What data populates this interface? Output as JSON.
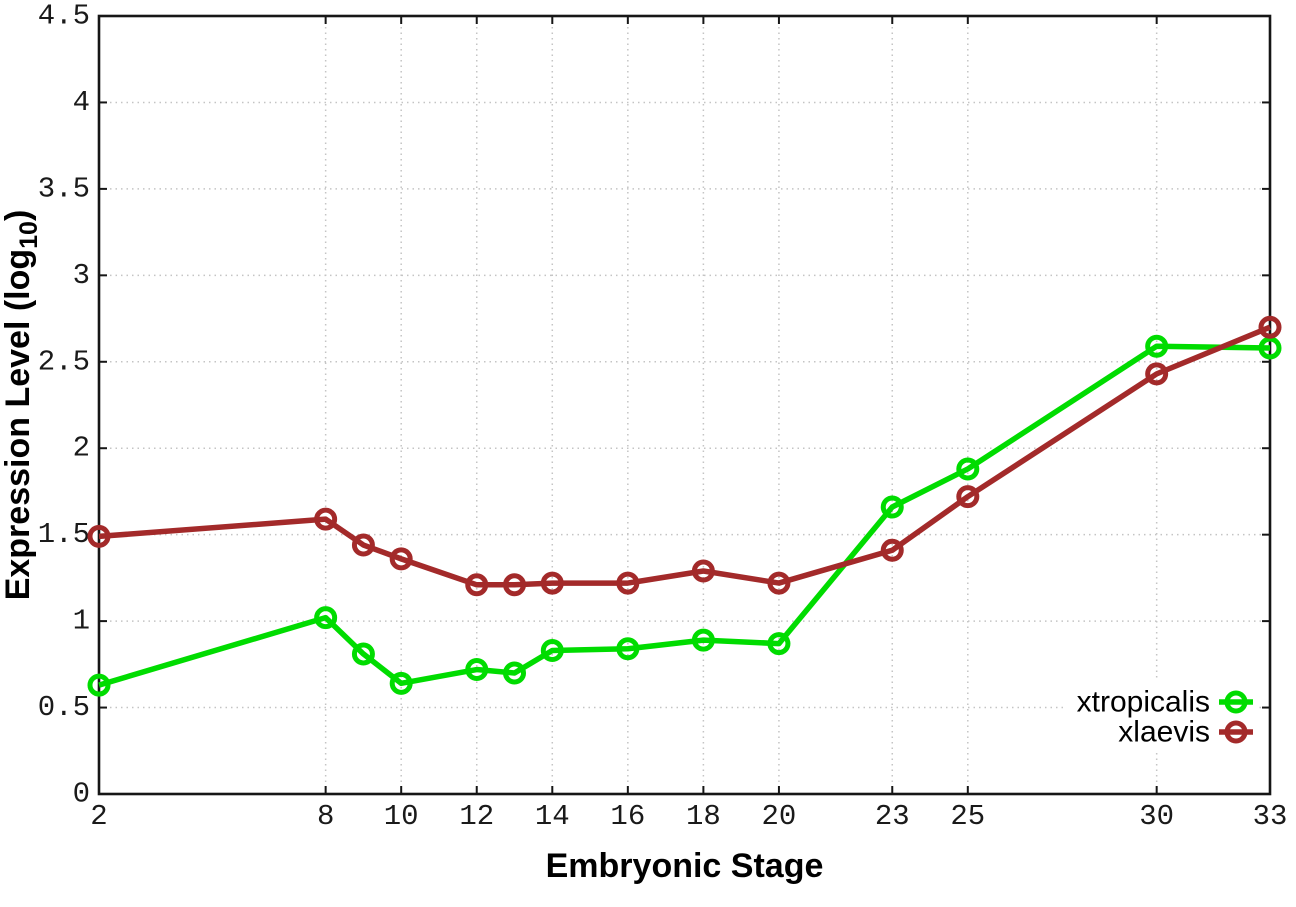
{
  "chart_data": {
    "type": "line",
    "xlabel": "Embryonic Stage",
    "ylabel": {
      "prefix": "Expression Level (log",
      "sub": "10",
      "suffix": ")"
    },
    "xlim": [
      2,
      33
    ],
    "ylim": [
      0,
      4.5
    ],
    "x_ticks": [
      2,
      8,
      10,
      12,
      14,
      16,
      18,
      20,
      23,
      25,
      30,
      33
    ],
    "y_ticks": [
      0,
      0.5,
      1,
      1.5,
      2,
      2.5,
      3,
      3.5,
      4,
      4.5
    ],
    "grid": true,
    "legend_position": "inside-bottom-right",
    "x": [
      2,
      8,
      9,
      10,
      12,
      13,
      14,
      16,
      18,
      20,
      23,
      25,
      30,
      33
    ],
    "series": [
      {
        "name": "xtropicalis",
        "color": "#00dc00",
        "values": [
          0.63,
          1.02,
          0.81,
          0.64,
          0.72,
          0.7,
          0.83,
          0.84,
          0.89,
          0.87,
          1.66,
          1.88,
          2.59,
          2.58
        ]
      },
      {
        "name": "xlaevis",
        "color": "#a32a2a",
        "values": [
          1.49,
          1.59,
          1.44,
          1.36,
          1.21,
          1.21,
          1.22,
          1.22,
          1.29,
          1.22,
          1.41,
          1.72,
          2.43,
          2.7
        ]
      }
    ],
    "colors": {
      "axis": "#161616",
      "grid": "#c4c4c4",
      "tick_text": "#1a1a1a",
      "title_text": "#000000",
      "legend_text": "#000000",
      "background": "#ffffff"
    }
  }
}
